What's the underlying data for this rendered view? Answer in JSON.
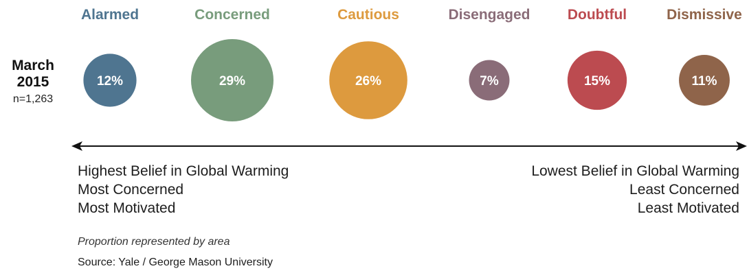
{
  "chart_data": {
    "type": "bubble",
    "title": "",
    "period": [
      "March",
      "2015"
    ],
    "sample": "n=1,263",
    "categories": [
      "Alarmed",
      "Concerned",
      "Cautious",
      "Disengaged",
      "Doubtful",
      "Dismissive"
    ],
    "values": [
      12,
      29,
      26,
      7,
      15,
      11
    ],
    "value_labels": [
      "12%",
      "29%",
      "26%",
      "7%",
      "15%",
      "11%"
    ],
    "colors": [
      "#4f7590",
      "#789c7c",
      "#dd9a3e",
      "#8a6c78",
      "#bc4b50",
      "#8f644a"
    ],
    "axis": {
      "left_labels": [
        "Highest Belief in Global Warming",
        "Most Concerned",
        "Most Motivated"
      ],
      "right_labels": [
        "Lowest Belief in Global Warming",
        "Least Concerned",
        "Least Motivated"
      ]
    },
    "note": "Proportion represented by area",
    "source": "Source: Yale / George Mason University"
  }
}
